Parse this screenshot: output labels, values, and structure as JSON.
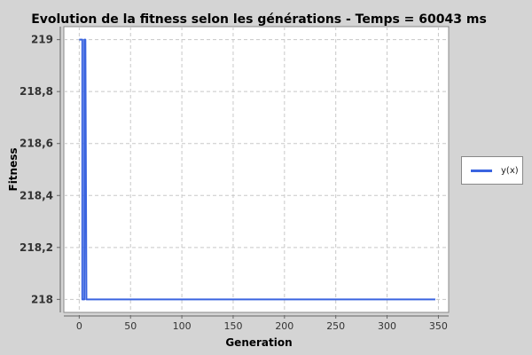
{
  "chart_data": {
    "type": "line",
    "title": "Evolution de la fitness selon les générations - Temps = 60043 ms",
    "xlabel": "Generation",
    "ylabel": "Fitness",
    "xlim": [
      -15,
      360
    ],
    "ylim": [
      217.95,
      219.05
    ],
    "x_ticks": [
      0,
      50,
      100,
      150,
      200,
      250,
      300,
      350
    ],
    "y_ticks": [
      218,
      218.2,
      218.4,
      218.6,
      218.8,
      219
    ],
    "y_tick_labels": [
      "218",
      "218,2",
      "218,4",
      "218,6",
      "218,8",
      "219"
    ],
    "grid": true,
    "legend_position": "right",
    "series": [
      {
        "name": "y(x)",
        "color": "#3a64e0",
        "x": [
          0,
          1,
          2,
          3,
          3,
          4,
          5,
          5,
          6,
          7,
          10,
          50,
          100,
          150,
          200,
          250,
          300,
          347
        ],
        "y": [
          219,
          219,
          219,
          219,
          218,
          218,
          218,
          219,
          219,
          218,
          218,
          218,
          218,
          218,
          218,
          218,
          218,
          218
        ]
      }
    ]
  }
}
